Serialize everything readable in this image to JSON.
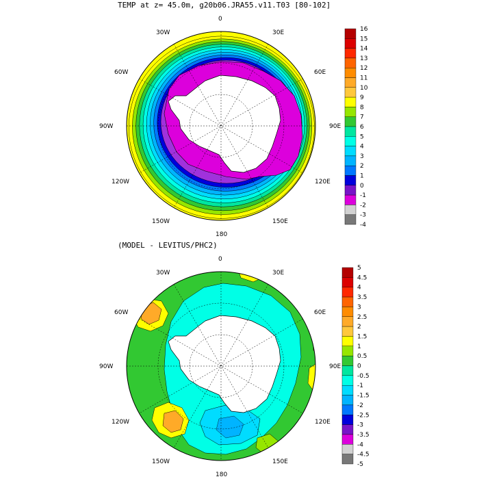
{
  "top_map": {
    "title": "TEMP at z=  45.0m, g20b06.JRA55.v11.T03 [80-102]",
    "longitude_labels": [
      "0",
      "30E",
      "60E",
      "90E",
      "120E",
      "150E",
      "180",
      "150W",
      "120W",
      "90W",
      "60W",
      "30W"
    ],
    "colorbar": {
      "labels": [
        "16",
        "15",
        "14",
        "13",
        "12",
        "11",
        "10",
        "9",
        "8",
        "7",
        "6",
        "5",
        "4",
        "3",
        "2",
        "1",
        "0",
        "-1",
        "-2",
        "-3",
        "-4"
      ],
      "colors": [
        "#b40000",
        "#dc0000",
        "#ff2800",
        "#ff6400",
        "#ff8c00",
        "#ffaa28",
        "#ffc83c",
        "#ffff00",
        "#96e600",
        "#32c832",
        "#00e6a0",
        "#00ffe6",
        "#00dcff",
        "#00b4ff",
        "#0078ff",
        "#0000dc",
        "#7814c8",
        "#dc00dc",
        "#d2d2d2",
        "#787878"
      ]
    },
    "field": {
      "ice_color": "#dc00dc",
      "rings": [
        {
          "color": "#a032dc"
        },
        {
          "color": "#0000dc"
        },
        {
          "color": "#0078ff"
        },
        {
          "color": "#00b4ff"
        },
        {
          "color": "#00dcff"
        },
        {
          "color": "#00ffe6"
        },
        {
          "color": "#00e6a0"
        },
        {
          "color": "#32c832"
        },
        {
          "color": "#96e600"
        },
        {
          "color": "#ffff00"
        }
      ]
    }
  },
  "bottom_map": {
    "title": "(MODEL - LEVITUS/PHC2)",
    "longitude_labels": [
      "0",
      "30E",
      "60E",
      "90E",
      "120E",
      "150E",
      "180",
      "150W",
      "120W",
      "90W",
      "60W",
      "30W"
    ],
    "colorbar": {
      "labels": [
        "5",
        "4.5",
        "4",
        "3.5",
        "3",
        "2.5",
        "2",
        "1.5",
        "1",
        "0.5",
        "0",
        "-0.5",
        "-1",
        "-1.5",
        "-2",
        "-2.5",
        "-3",
        "-3.5",
        "-4",
        "-4.5",
        "-5"
      ],
      "colors": [
        "#b40000",
        "#dc0000",
        "#ff2800",
        "#ff6400",
        "#ff8c00",
        "#ffaa28",
        "#ffc83c",
        "#ffff00",
        "#96e600",
        "#32c832",
        "#00e6a0",
        "#00ffe6",
        "#00dcff",
        "#00b4ff",
        "#0078ff",
        "#0000dc",
        "#7814c8",
        "#dc00dc",
        "#d2d2d2",
        "#787878"
      ]
    },
    "field": {
      "base_color": "#32c832",
      "inner_color": "#00ffe6"
    }
  }
}
